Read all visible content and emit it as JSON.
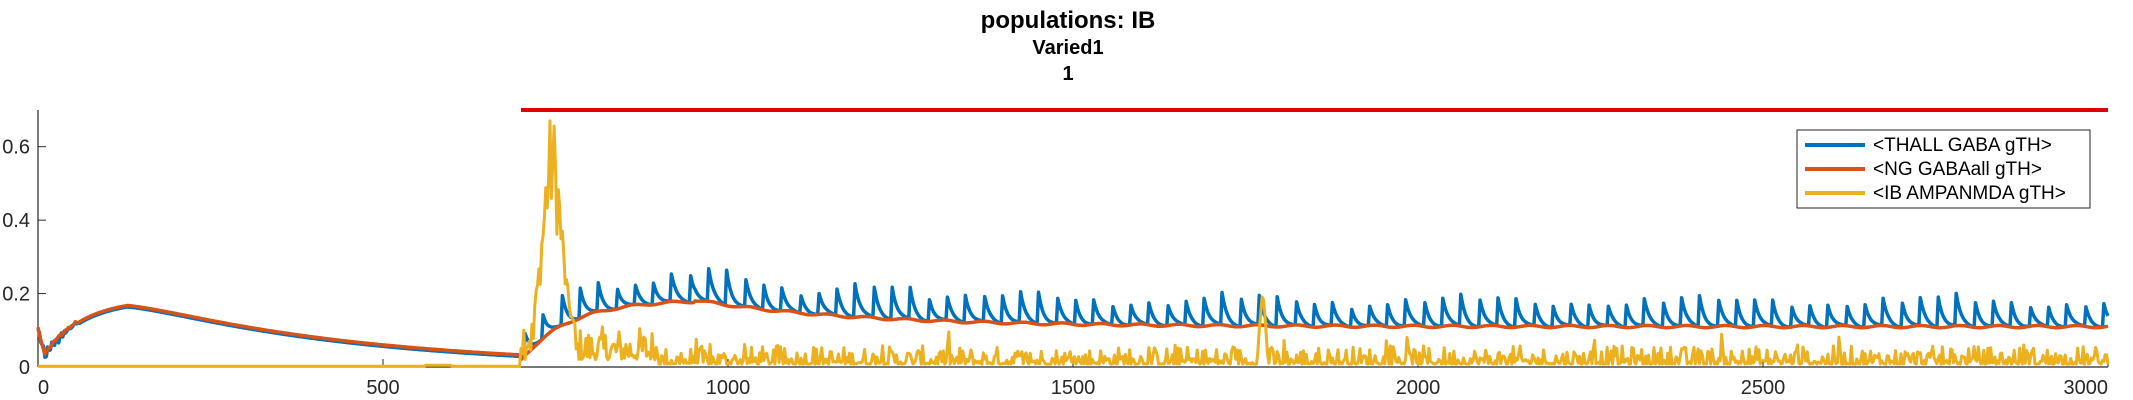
{
  "chart_data": {
    "type": "line",
    "title": "populations: IB",
    "subtitle_lines": [
      "Varied1",
      "1"
    ],
    "xlabel": "",
    "ylabel": "",
    "xlim": [
      0,
      3000
    ],
    "ylim": [
      0,
      0.7
    ],
    "x_ticks": [
      0,
      500,
      1000,
      1500,
      2000,
      2500,
      3000
    ],
    "x_tick_labels": [
      "0",
      "500",
      "1000",
      "1500",
      "2000",
      "2500",
      "3000"
    ],
    "y_ticks": [
      0,
      0.2,
      0.4,
      0.6
    ],
    "y_tick_labels": [
      "0",
      "0.2",
      "0.4",
      "0.6"
    ],
    "grid": false,
    "legend_position": "top-right",
    "series": [
      {
        "name": "<THALL GABA gTH>",
        "color": "#0072BD"
      },
      {
        "name": "<NG GABAall gTH>",
        "color": "#D95319"
      },
      {
        "name": "<IB AMPANMDA gTH>",
        "color": "#EDB120"
      }
    ],
    "reference_lines": [
      {
        "type": "horizontal",
        "y": 0.7,
        "x_start": 700,
        "x_end": 3000,
        "color": "#E00000"
      }
    ]
  }
}
